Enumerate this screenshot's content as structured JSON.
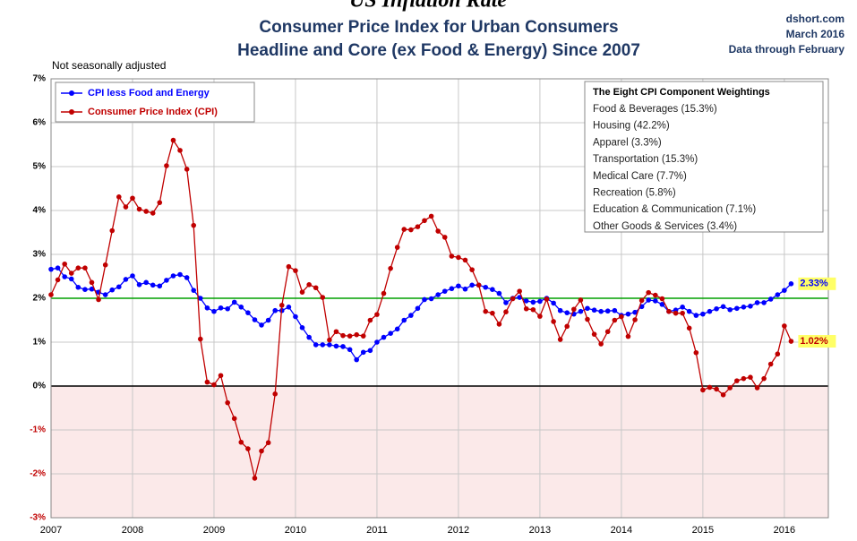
{
  "chart_data": {
    "type": "line",
    "top_title": "US Inflation Rate",
    "title": "Consumer Price Index for Urban Consumers",
    "subtitle": "Headline and Core (ex Food & Energy) Since 2007",
    "source": [
      "dshort.com",
      "March 2016",
      "Data through February"
    ],
    "note": "Not seasonally adjusted",
    "x": [
      2007,
      2007.083,
      2007.167,
      2007.25,
      2007.333,
      2007.417,
      2007.5,
      2007.583,
      2007.667,
      2007.75,
      2007.833,
      2007.917,
      2008,
      2008.083,
      2008.167,
      2008.25,
      2008.333,
      2008.417,
      2008.5,
      2008.583,
      2008.667,
      2008.75,
      2008.833,
      2008.917,
      2009,
      2009.083,
      2009.167,
      2009.25,
      2009.333,
      2009.417,
      2009.5,
      2009.583,
      2009.667,
      2009.75,
      2009.833,
      2009.917,
      2010,
      2010.083,
      2010.167,
      2010.25,
      2010.333,
      2010.417,
      2010.5,
      2010.583,
      2010.667,
      2010.75,
      2010.833,
      2010.917,
      2011,
      2011.083,
      2011.167,
      2011.25,
      2011.333,
      2011.417,
      2011.5,
      2011.583,
      2011.667,
      2011.75,
      2011.833,
      2011.917,
      2012,
      2012.083,
      2012.167,
      2012.25,
      2012.333,
      2012.417,
      2012.5,
      2012.583,
      2012.667,
      2012.75,
      2012.833,
      2012.917,
      2013,
      2013.083,
      2013.167,
      2013.25,
      2013.333,
      2013.417,
      2013.5,
      2013.583,
      2013.667,
      2013.75,
      2013.833,
      2013.917,
      2014,
      2014.083,
      2014.167,
      2014.25,
      2014.333,
      2014.417,
      2014.5,
      2014.583,
      2014.667,
      2014.75,
      2014.833,
      2014.917,
      2015,
      2015.083,
      2015.167,
      2015.25,
      2015.333,
      2015.417,
      2015.5,
      2015.583,
      2015.667,
      2015.75,
      2015.833,
      2015.917,
      2016,
      2016.083
    ],
    "series": [
      {
        "name": "CPI less Food and Energy",
        "color": "#0000ff",
        "end_label": "2.33%",
        "values": [
          2.66,
          2.69,
          2.49,
          2.44,
          2.25,
          2.2,
          2.21,
          2.14,
          2.08,
          2.19,
          2.26,
          2.43,
          2.51,
          2.31,
          2.36,
          2.3,
          2.28,
          2.41,
          2.51,
          2.54,
          2.47,
          2.18,
          2.0,
          1.78,
          1.7,
          1.78,
          1.76,
          1.91,
          1.8,
          1.67,
          1.51,
          1.39,
          1.5,
          1.72,
          1.72,
          1.8,
          1.58,
          1.33,
          1.11,
          0.94,
          0.94,
          0.94,
          0.91,
          0.9,
          0.83,
          0.6,
          0.77,
          0.81,
          1.0,
          1.11,
          1.2,
          1.3,
          1.5,
          1.61,
          1.77,
          1.97,
          1.99,
          2.08,
          2.16,
          2.22,
          2.28,
          2.21,
          2.3,
          2.3,
          2.25,
          2.2,
          2.11,
          1.9,
          2.0,
          2.02,
          1.94,
          1.91,
          1.93,
          2.0,
          1.89,
          1.72,
          1.67,
          1.64,
          1.7,
          1.77,
          1.73,
          1.7,
          1.71,
          1.72,
          1.61,
          1.64,
          1.68,
          1.81,
          1.96,
          1.94,
          1.86,
          1.7,
          1.73,
          1.8,
          1.7,
          1.61,
          1.64,
          1.7,
          1.76,
          1.81,
          1.74,
          1.77,
          1.8,
          1.82,
          1.9,
          1.9,
          1.98,
          2.08,
          2.18,
          2.33
        ]
      },
      {
        "name": "Consumer Price Index (CPI)",
        "color": "#c00000",
        "end_label": "1.02%",
        "values": [
          2.08,
          2.42,
          2.78,
          2.57,
          2.69,
          2.69,
          2.36,
          1.97,
          2.76,
          3.54,
          4.31,
          4.08,
          4.28,
          4.03,
          3.98,
          3.94,
          4.18,
          5.02,
          5.6,
          5.37,
          4.94,
          3.66,
          1.07,
          0.09,
          0.03,
          0.24,
          -0.38,
          -0.74,
          -1.28,
          -1.43,
          -2.1,
          -1.48,
          -1.29,
          -0.18,
          1.84,
          2.72,
          2.63,
          2.14,
          2.31,
          2.24,
          2.02,
          1.05,
          1.24,
          1.15,
          1.14,
          1.17,
          1.14,
          1.5,
          1.63,
          2.11,
          2.68,
          3.16,
          3.57,
          3.56,
          3.63,
          3.77,
          3.87,
          3.53,
          3.39,
          2.96,
          2.93,
          2.87,
          2.65,
          2.3,
          1.7,
          1.66,
          1.41,
          1.69,
          1.99,
          2.16,
          1.76,
          1.74,
          1.59,
          1.98,
          1.47,
          1.06,
          1.36,
          1.75,
          1.96,
          1.52,
          1.18,
          0.96,
          1.24,
          1.5,
          1.58,
          1.13,
          1.51,
          1.95,
          2.13,
          2.07,
          1.99,
          1.7,
          1.66,
          1.66,
          1.32,
          0.76,
          -0.09,
          -0.03,
          -0.07,
          -0.2,
          -0.04,
          0.12,
          0.17,
          0.2,
          -0.04,
          0.17,
          0.5,
          0.73,
          1.37,
          1.02
        ]
      }
    ],
    "xlim": [
      2007,
      2016.54
    ],
    "xticks": [
      2007,
      2008,
      2009,
      2010,
      2011,
      2012,
      2013,
      2014,
      2015,
      2016
    ],
    "ylim": [
      -3,
      7
    ],
    "yticks": [
      {
        "value": -3,
        "label": "-3%"
      },
      {
        "value": -2,
        "label": "-2%"
      },
      {
        "value": -1,
        "label": "-1%"
      },
      {
        "value": 0,
        "label": "0%"
      },
      {
        "value": 1,
        "label": "1%"
      },
      {
        "value": 2,
        "label": "2%"
      },
      {
        "value": 3,
        "label": "3%"
      },
      {
        "value": 4,
        "label": "4%"
      },
      {
        "value": 5,
        "label": "5%"
      },
      {
        "value": 6,
        "label": "6%"
      },
      {
        "value": 7,
        "label": "7%"
      }
    ],
    "grid": true,
    "reference_line": {
      "value": 2,
      "color": "#00a000"
    },
    "shade_below": {
      "value": 0,
      "color": "#fbe9e9"
    },
    "legend": "top-left",
    "weightings": {
      "title": "The Eight CPI Component Weightings",
      "items": [
        "Food & Beverages (15.3%)",
        "Housing (42.2%)",
        "Apparel (3.3%)",
        "Transportation (15.3%)",
        "Medical Care (7.7%)",
        "Recreation (5.8%)",
        "Education & Communication (7.1%)",
        "Other Goods & Services (3.4%)"
      ]
    }
  }
}
